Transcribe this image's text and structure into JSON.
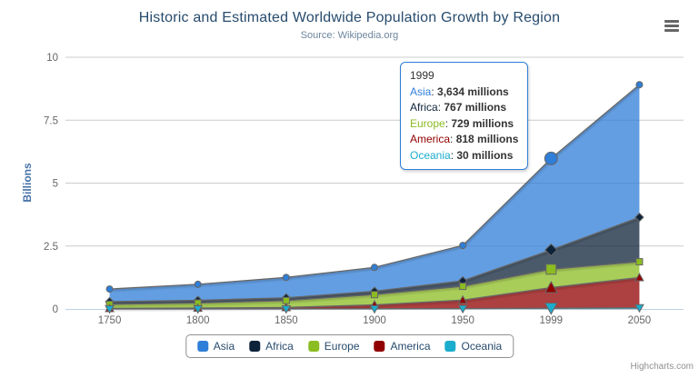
{
  "header": {
    "title": "Historic and Estimated Worldwide Population Growth by Region",
    "subtitle": "Source: Wikipedia.org"
  },
  "credits": "Highcharts.com",
  "colors": {
    "title": "#274b6d",
    "subtitle": "#6d869f",
    "axis_label": "#666666",
    "axis_line": "#c0d0e0",
    "gridline": "#cccccc",
    "series_line": "#666666",
    "legend_border": "#909090",
    "tooltip_border": "#2f7ed8",
    "credits": "#909090"
  },
  "chart_data": {
    "type": "area",
    "stacking": "normal",
    "title": "Historic and Estimated Worldwide Population Growth by Region",
    "subtitle": "Source: Wikipedia.org",
    "xlabel": "",
    "ylabel": "Billions",
    "ylim": [
      0,
      10
    ],
    "yticks": [
      "0",
      "2.5",
      "5",
      "7.5",
      "10"
    ],
    "grid": "horizontal",
    "legend_position": "bottom-center",
    "unit": "millions",
    "categories": [
      "1750",
      "1800",
      "1850",
      "1900",
      "1950",
      "1999",
      "2050"
    ],
    "series": [
      {
        "name": "Asia",
        "color": "#2f7ed8",
        "marker": "circle",
        "values": [
          502,
          635,
          809,
          947,
          1402,
          3634,
          5268
        ]
      },
      {
        "name": "Africa",
        "color": "#0d233a",
        "marker": "diamond",
        "values": [
          106,
          107,
          111,
          133,
          221,
          767,
          1766
        ]
      },
      {
        "name": "Europe",
        "color": "#8bbc21",
        "marker": "square",
        "values": [
          163,
          203,
          276,
          408,
          547,
          729,
          628
        ]
      },
      {
        "name": "America",
        "color": "#910000",
        "marker": "triangle",
        "values": [
          18,
          31,
          54,
          156,
          339,
          818,
          1201
        ]
      },
      {
        "name": "Oceania",
        "color": "#1aadce",
        "marker": "triangle-down",
        "values": [
          2,
          2,
          2,
          6,
          13,
          30,
          46
        ]
      }
    ],
    "hovered_category_index": 5
  },
  "tooltip": {
    "header": "1999",
    "rows": [
      {
        "name": "Asia",
        "value": "3,634 millions"
      },
      {
        "name": "Africa",
        "value": "767 millions"
      },
      {
        "name": "Europe",
        "value": "729 millions"
      },
      {
        "name": "America",
        "value": "818 millions"
      },
      {
        "name": "Oceania",
        "value": "30 millions"
      }
    ]
  },
  "legend": {
    "items": [
      "Asia",
      "Africa",
      "Europe",
      "America",
      "Oceania"
    ]
  }
}
